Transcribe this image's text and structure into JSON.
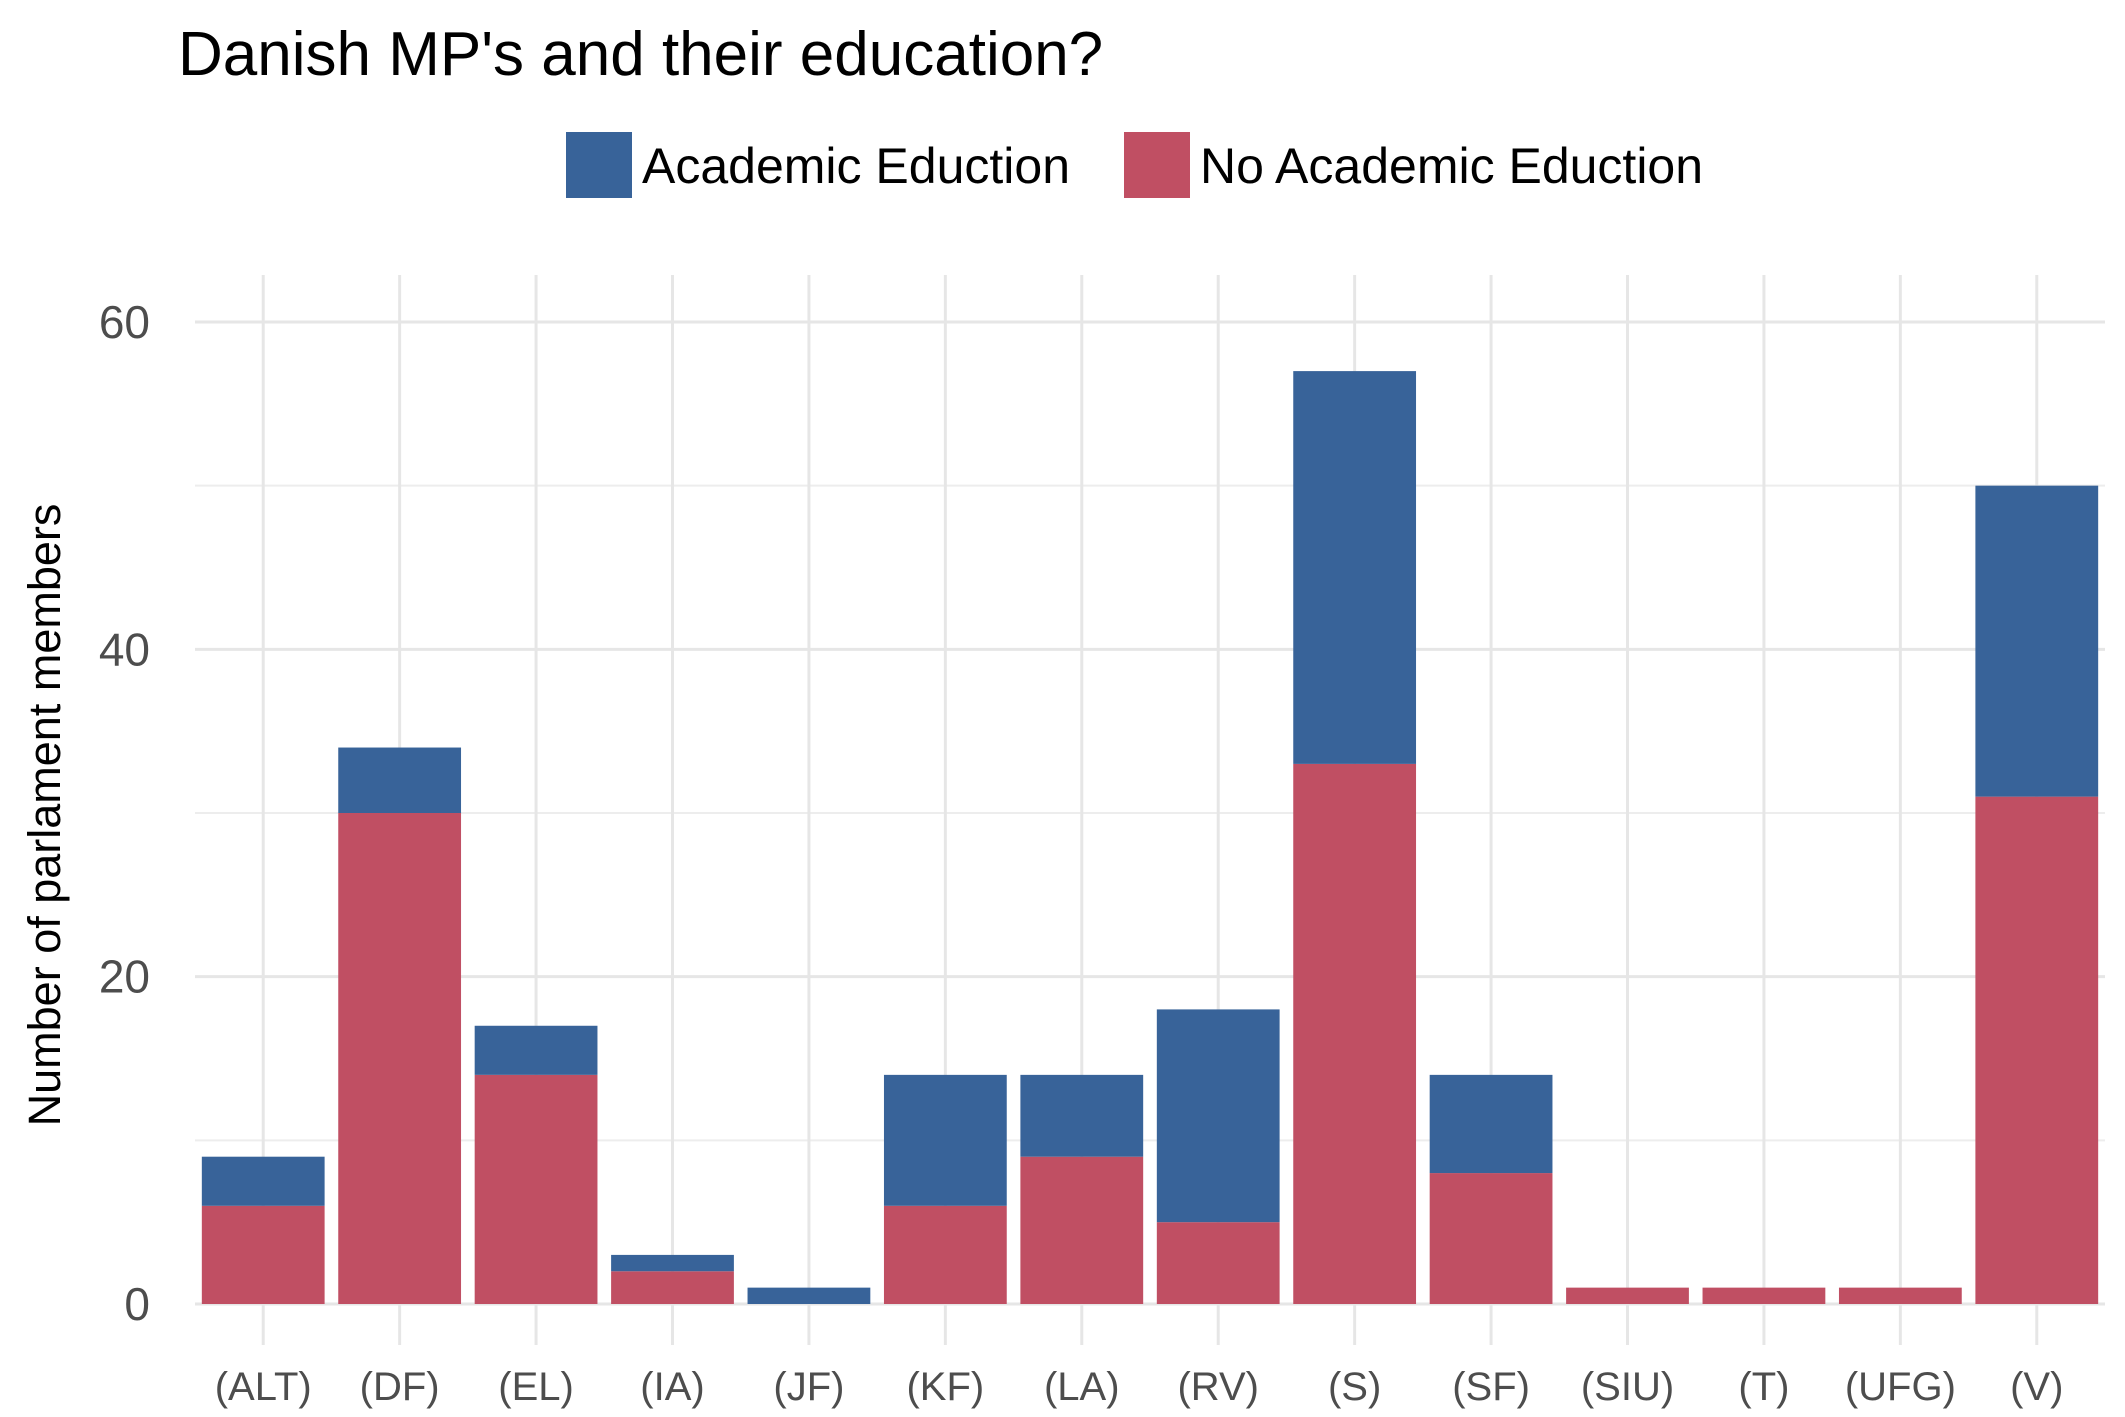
{
  "chart_data": {
    "type": "bar",
    "stacked": true,
    "title": "Danish MP's and their education?",
    "xlabel": "",
    "ylabel": "Number of parlament members",
    "categories": [
      "(ALT)",
      "(DF)",
      "(EL)",
      "(IA)",
      "(JF)",
      "(KF)",
      "(LA)",
      "(RV)",
      "(S)",
      "(SF)",
      "(SIU)",
      "(T)",
      "(UFG)",
      "(V)"
    ],
    "series": [
      {
        "name": "No Academic Eduction",
        "color": "#c04f63",
        "values": [
          6,
          30,
          14,
          2,
          0,
          6,
          9,
          5,
          33,
          8,
          1,
          1,
          1,
          31
        ]
      },
      {
        "name": "Academic Eduction",
        "color": "#386399",
        "values": [
          3,
          4,
          3,
          1,
          1,
          8,
          5,
          13,
          24,
          6,
          0,
          0,
          0,
          19
        ]
      }
    ],
    "legend_order": [
      "Academic Eduction",
      "No Academic Eduction"
    ],
    "legend_position": "top",
    "ylim": [
      0,
      60
    ],
    "yticks": [
      0,
      20,
      40,
      60
    ],
    "grid": true
  }
}
